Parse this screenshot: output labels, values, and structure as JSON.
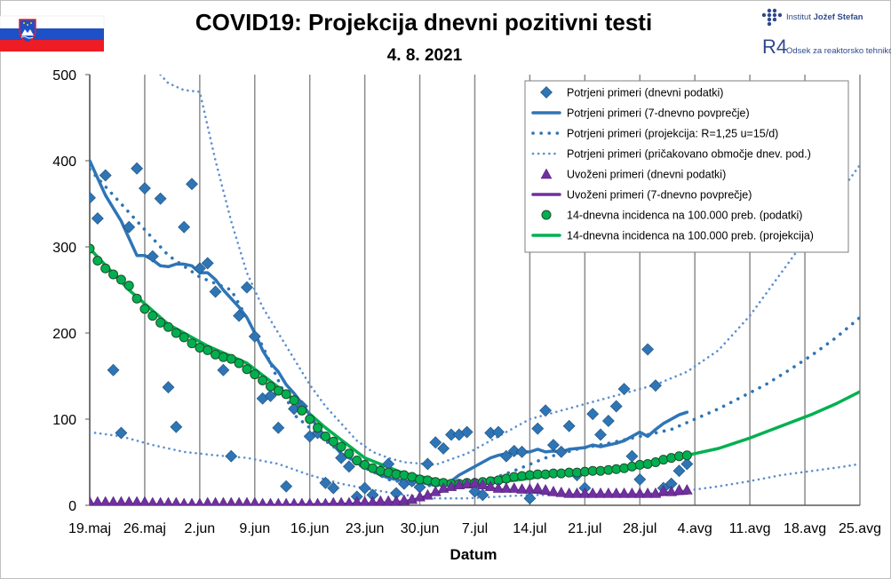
{
  "header": {
    "title": "COVID19: Projekcija dnevni pozitivni testi",
    "date": "4. 8. 2021"
  },
  "logo": {
    "institute": "Institut ",
    "institute_bold": "Jožef Stefan",
    "department": "Odsek za reaktorsko tehniko",
    "mark": "R4"
  },
  "flag": {
    "colors": [
      "#ffffff",
      "#1e50c8",
      "#ee1c25"
    ]
  },
  "chart_data": {
    "type": "scatter",
    "xlabel": "Datum",
    "ylim": [
      0,
      500
    ],
    "y_ticks": [
      0,
      100,
      200,
      300,
      400,
      500
    ],
    "x_ticks": [
      "19.maj",
      "26.maj",
      "2.jun",
      "9.jun",
      "16.jun",
      "23.jun",
      "30.jun",
      "7.jul",
      "14.jul",
      "21.jul",
      "28.jul",
      "4.avg",
      "11.avg",
      "18.avg",
      "25.avg"
    ],
    "x_range_days": [
      0,
      98
    ],
    "grid": "vertical",
    "legend_position": "top-right",
    "series": [
      {
        "name": "Potrjeni primeri (dnevni podatki)",
        "kind": "diamond",
        "color": "#2e75b6",
        "x": [
          0,
          1,
          2,
          3,
          4,
          5,
          6,
          7,
          8,
          9,
          10,
          11,
          12,
          13,
          14,
          15,
          16,
          17,
          18,
          19,
          20,
          21,
          22,
          23,
          24,
          25,
          26,
          27,
          28,
          29,
          30,
          31,
          32,
          33,
          34,
          35,
          36,
          37,
          38,
          39,
          40,
          41,
          42,
          43,
          44,
          45,
          46,
          47,
          48,
          49,
          50,
          51,
          52,
          53,
          54,
          55,
          56,
          57,
          58,
          59,
          60,
          61,
          62,
          63,
          64,
          65,
          66,
          67,
          68,
          69,
          70,
          71,
          72,
          73,
          74,
          75,
          76
        ],
        "y": [
          357,
          333,
          383,
          157,
          84,
          323,
          391,
          368,
          289,
          356,
          137,
          91,
          323,
          373,
          275,
          281,
          248,
          157,
          57,
          220,
          253,
          196,
          124,
          127,
          90,
          22,
          112,
          115,
          80,
          84,
          26,
          20,
          55,
          45,
          10,
          20,
          12,
          40,
          48,
          14,
          25,
          28,
          21,
          48,
          73,
          66,
          82,
          82,
          85,
          16,
          12,
          84,
          85,
          57,
          63,
          62,
          8,
          89,
          110,
          70,
          62,
          92,
          35,
          20,
          106,
          82,
          98,
          115,
          135,
          57,
          30,
          181,
          139,
          20,
          25,
          40,
          48
        ]
      },
      {
        "name": "Potrjeni primeri (7-dnevno povprečje)",
        "kind": "solid",
        "color": "#2e75b6",
        "x": [
          0,
          2,
          4,
          6,
          7,
          8,
          9,
          10,
          11,
          12,
          13,
          14,
          15,
          16,
          17,
          18,
          19,
          20,
          21,
          22,
          23,
          24,
          25,
          26,
          27,
          28,
          29,
          30,
          31,
          32,
          33,
          34,
          35,
          36,
          37,
          38,
          39,
          40,
          41,
          42,
          43,
          44,
          45,
          46,
          47,
          48,
          49,
          50,
          51,
          52,
          53,
          54,
          55,
          56,
          57,
          58,
          59,
          60,
          61,
          62,
          63,
          64,
          65,
          66,
          67,
          68,
          69,
          70,
          71,
          72,
          73,
          74,
          75,
          76
        ],
        "y": [
          400,
          360,
          330,
          290,
          290,
          285,
          278,
          277,
          280,
          280,
          278,
          270,
          270,
          262,
          250,
          240,
          230,
          218,
          200,
          180,
          165,
          155,
          140,
          130,
          118,
          105,
          90,
          80,
          70,
          60,
          55,
          50,
          45,
          40,
          35,
          32,
          30,
          28,
          27,
          27,
          25,
          23,
          25,
          28,
          35,
          40,
          45,
          50,
          55,
          58,
          60,
          60,
          62,
          62,
          65,
          62,
          63,
          62,
          65,
          66,
          67,
          70,
          68,
          70,
          72,
          75,
          80,
          85,
          80,
          88,
          95,
          100,
          105,
          108
        ]
      },
      {
        "name": "Potrjeni primeri (projekcija: R=1,25 u=15/d)",
        "kind": "dotted-heavy",
        "color": "#2e75b6",
        "x": [
          0,
          5,
          10,
          14,
          18,
          22,
          26,
          30,
          34,
          38,
          42,
          46,
          50,
          54,
          58,
          62,
          66,
          70,
          74,
          77,
          80,
          83,
          86,
          89,
          92,
          95,
          98
        ],
        "y": [
          390,
          340,
          290,
          265,
          250,
          185,
          105,
          75,
          48,
          30,
          23,
          23,
          27,
          40,
          55,
          65,
          72,
          80,
          88,
          100,
          112,
          126,
          140,
          157,
          175,
          195,
          218
        ]
      },
      {
        "name": "Potrjeni primeri (pričakovano območje dnev. pod.)",
        "kind": "dotted-light",
        "color": "#5b8fd0",
        "upper": {
          "x": [
            9,
            10,
            12,
            14,
            16,
            18,
            20,
            22,
            24,
            26,
            28,
            30,
            32,
            34,
            36,
            38,
            40,
            44,
            48,
            52,
            56,
            60,
            64,
            68,
            72,
            76,
            80,
            84,
            88,
            92,
            96,
            98
          ],
          "y": [
            500,
            490,
            482,
            480,
            400,
            330,
            270,
            230,
            200,
            170,
            140,
            115,
            95,
            75,
            62,
            55,
            50,
            47,
            60,
            80,
            100,
            110,
            120,
            130,
            140,
            155,
            180,
            220,
            270,
            320,
            370,
            395
          ]
        },
        "lower": {
          "x": [
            0,
            4,
            8,
            12,
            16,
            20,
            24,
            28,
            32,
            36,
            40,
            44,
            48,
            52,
            56,
            60,
            64,
            68,
            72,
            76,
            80,
            84,
            88,
            92,
            96,
            98
          ],
          "y": [
            85,
            80,
            70,
            62,
            58,
            55,
            48,
            35,
            25,
            18,
            12,
            8,
            8,
            10,
            12,
            12,
            12,
            12,
            14,
            17,
            22,
            28,
            35,
            40,
            45,
            48
          ]
        }
      },
      {
        "name": "Uvoženi primeri (dnevni podatki)",
        "kind": "triangle",
        "color": "#7030a0",
        "x": [
          0,
          1,
          2,
          3,
          4,
          5,
          6,
          7,
          8,
          9,
          10,
          11,
          12,
          13,
          14,
          15,
          16,
          17,
          18,
          19,
          20,
          21,
          22,
          23,
          24,
          25,
          26,
          27,
          28,
          29,
          30,
          31,
          32,
          33,
          34,
          35,
          36,
          37,
          38,
          39,
          40,
          41,
          42,
          43,
          44,
          45,
          46,
          47,
          48,
          49,
          50,
          51,
          52,
          53,
          54,
          55,
          56,
          57,
          58,
          59,
          60,
          61,
          62,
          63,
          64,
          65,
          66,
          67,
          68,
          69,
          70,
          71,
          72,
          73,
          74,
          75,
          76
        ],
        "y": [
          2,
          2,
          2,
          2,
          2,
          2,
          2,
          2,
          1,
          1,
          1,
          1,
          0,
          0,
          0,
          1,
          1,
          1,
          1,
          1,
          1,
          1,
          0,
          0,
          0,
          0,
          0,
          0,
          0,
          0,
          0,
          1,
          1,
          1,
          2,
          2,
          2,
          3,
          3,
          3,
          4,
          5,
          8,
          10,
          14,
          18,
          20,
          22,
          23,
          24,
          22,
          20,
          18,
          18,
          18,
          17,
          17,
          18,
          16,
          14,
          13,
          12,
          12,
          12,
          12,
          12,
          12,
          12,
          12,
          12,
          12,
          12,
          12,
          15,
          14,
          16,
          16
        ]
      },
      {
        "name": "Uvoženi primeri (7-dnevno povprečje)",
        "kind": "solid-purple",
        "color": "#7030a0",
        "x": [
          0,
          6,
          12,
          18,
          24,
          30,
          36,
          40,
          42,
          44,
          46,
          48,
          50,
          52,
          54,
          56,
          58,
          60,
          62,
          64,
          66,
          68,
          70,
          72,
          74,
          76
        ],
        "y": [
          1,
          1,
          0,
          0,
          0,
          1,
          2,
          4,
          8,
          14,
          20,
          24,
          22,
          18,
          17,
          16,
          14,
          12,
          12,
          12,
          12,
          12,
          12,
          12,
          13,
          14
        ]
      },
      {
        "name": "14-dnevna incidenca na 100.000 preb. (podatki)",
        "kind": "circle",
        "color": "#00b050",
        "x": [
          0,
          1,
          2,
          3,
          4,
          5,
          6,
          7,
          8,
          9,
          10,
          11,
          12,
          13,
          14,
          15,
          16,
          17,
          18,
          19,
          20,
          21,
          22,
          23,
          24,
          25,
          26,
          27,
          28,
          29,
          30,
          31,
          32,
          33,
          34,
          35,
          36,
          37,
          38,
          39,
          40,
          41,
          42,
          43,
          44,
          45,
          46,
          47,
          48,
          49,
          50,
          51,
          52,
          53,
          54,
          55,
          56,
          57,
          58,
          59,
          60,
          61,
          62,
          63,
          64,
          65,
          66,
          67,
          68,
          69,
          70,
          71,
          72,
          73,
          74,
          75,
          76
        ],
        "y": [
          298,
          284,
          275,
          268,
          262,
          255,
          240,
          228,
          220,
          212,
          207,
          200,
          195,
          188,
          183,
          180,
          175,
          172,
          170,
          165,
          158,
          152,
          145,
          138,
          133,
          129,
          122,
          110,
          100,
          90,
          80,
          74,
          68,
          60,
          52,
          47,
          43,
          40,
          38,
          36,
          35,
          33,
          30,
          29,
          27,
          26,
          25,
          25,
          26,
          26,
          27,
          28,
          29,
          31,
          33,
          34,
          35,
          36,
          36,
          37,
          37,
          38,
          38,
          39,
          40,
          40,
          41,
          42,
          43,
          45,
          47,
          48,
          50,
          53,
          55,
          57,
          58
        ]
      },
      {
        "name": "14-dnevna incidenca na 100.000 preb. (projekcija)",
        "kind": "solid-green",
        "color": "#00b050",
        "x": [
          0,
          5,
          10,
          15,
          20,
          25,
          30,
          35,
          40,
          45,
          50,
          55,
          60,
          65,
          70,
          76,
          80,
          84,
          88,
          92,
          95,
          98
        ],
        "y": [
          298,
          250,
          210,
          185,
          165,
          130,
          90,
          55,
          37,
          28,
          25,
          30,
          37,
          40,
          44,
          58,
          66,
          78,
          92,
          106,
          118,
          132
        ]
      }
    ]
  }
}
